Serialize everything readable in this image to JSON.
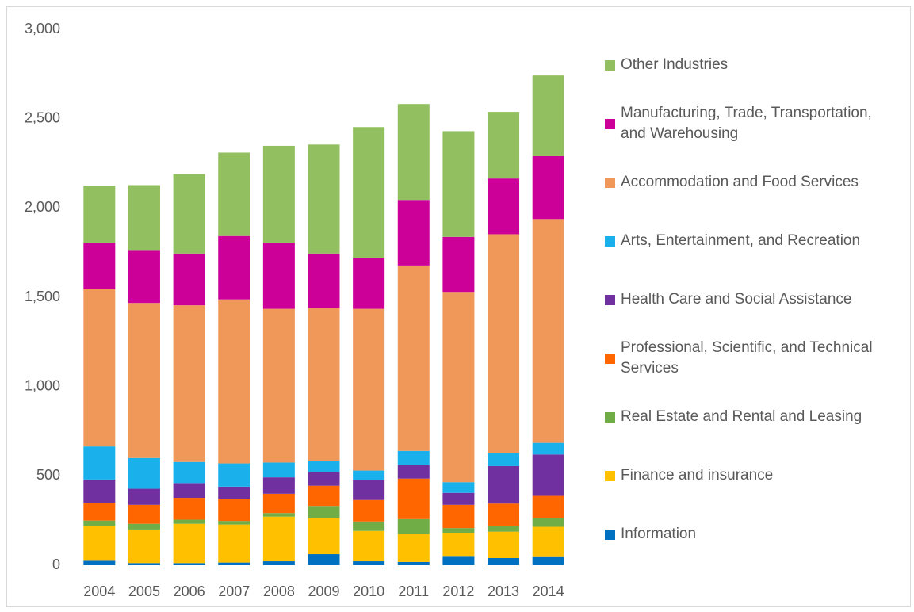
{
  "chart_data": {
    "type": "stacked-bar",
    "categories": [
      "2004",
      "2005",
      "2006",
      "2007",
      "2008",
      "2009",
      "2010",
      "2011",
      "2012",
      "2013",
      "2014"
    ],
    "ylim": [
      0,
      3000
    ],
    "yticks": [
      0,
      500,
      {
        "value": 1000,
        "label": "1,000"
      },
      {
        "value": 1500,
        "label": "1,500"
      },
      {
        "value": 2000,
        "label": "2,000"
      },
      {
        "value": 2500,
        "label": "2,500"
      },
      {
        "value": 3000,
        "label": "3,000"
      }
    ],
    "series": [
      {
        "name": "Information",
        "color": "#0070c0",
        "values": [
          25,
          12,
          12,
          15,
          22,
          62,
          22,
          18,
          52,
          40,
          50
        ]
      },
      {
        "name": "Finance and insurance",
        "color": "#ffc000",
        "values": [
          195,
          188,
          220,
          213,
          250,
          200,
          170,
          157,
          130,
          148,
          165
        ]
      },
      {
        "name": "Real Estate and Rental and Leasing",
        "color": "#70ad47",
        "values": [
          30,
          32,
          23,
          20,
          20,
          70,
          53,
          83,
          26,
          32,
          47
        ]
      },
      {
        "name": "Professional, Scientific, and Technical Services",
        "color": "#ff6600",
        "values": [
          100,
          106,
          122,
          124,
          108,
          113,
          120,
          227,
          130,
          125,
          126
        ]
      },
      {
        "name": "Health Care and Social Assistance",
        "color": "#7030a0",
        "values": [
          130,
          90,
          83,
          68,
          92,
          77,
          110,
          77,
          67,
          210,
          232
        ]
      },
      {
        "name": "Arts, Entertainment, and Recreation",
        "color": "#1ab0ec",
        "values": [
          185,
          172,
          118,
          130,
          83,
          63,
          55,
          78,
          60,
          73,
          65
        ]
      },
      {
        "name": "Accommodation and Food Services",
        "color": "#f0975a",
        "values": [
          880,
          868,
          877,
          918,
          860,
          857,
          905,
          1038,
          1065,
          1225,
          1253
        ]
      },
      {
        "name": "Manufacturing, Trade, Transportation, and Warehousing",
        "color": "#cc0099",
        "values": [
          260,
          297,
          290,
          355,
          370,
          303,
          287,
          367,
          308,
          312,
          352
        ]
      },
      {
        "name": "Other Industries",
        "color": "#92c060",
        "values": [
          320,
          363,
          445,
          467,
          543,
          610,
          731,
          537,
          592,
          373,
          452
        ]
      }
    ]
  }
}
